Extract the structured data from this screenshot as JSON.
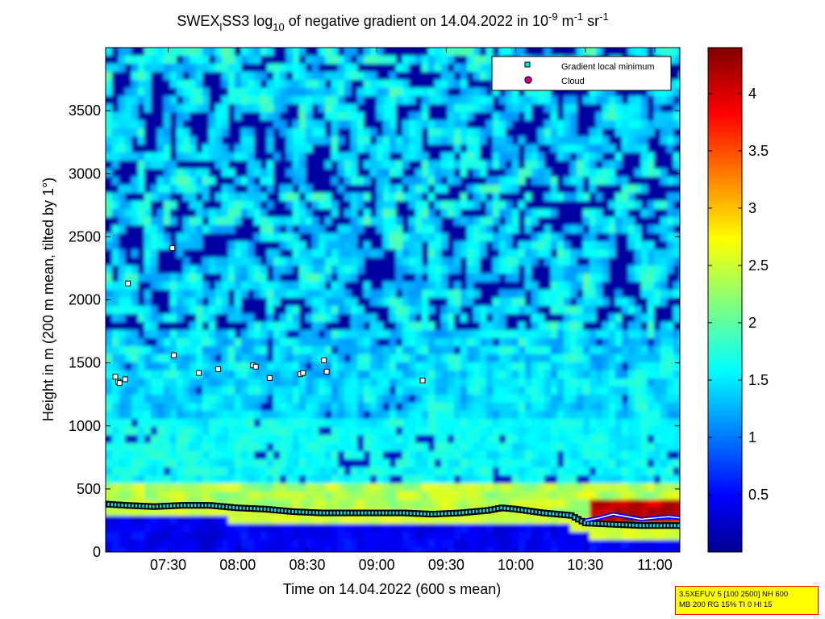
{
  "chart_data": {
    "type": "heatmap",
    "title": {
      "prefix": "SWEX",
      "sub_l": "l",
      "middle": "SS3 log",
      "sub_10": "10",
      "text1": " of negative gradient on 14.04.2022 in 10",
      "sup1": "-9",
      "text2": " m",
      "sup2": "-1",
      "text3": " sr",
      "sup3": "-1"
    },
    "xlabel": "Time on 14.04.2022 (600 s mean)",
    "ylabel": "Height in m (200 m mean, tilted by 1°)",
    "x_range_hours": [
      7.05,
      11.18
    ],
    "x_ticks": [
      {
        "label": "07:30",
        "hour": 7.5
      },
      {
        "label": "08:00",
        "hour": 8.0
      },
      {
        "label": "08:30",
        "hour": 8.5
      },
      {
        "label": "09:00",
        "hour": 9.0
      },
      {
        "label": "09:30",
        "hour": 9.5
      },
      {
        "label": "10:00",
        "hour": 10.0
      },
      {
        "label": "10:30",
        "hour": 10.5
      },
      {
        "label": "11:00",
        "hour": 11.0
      }
    ],
    "ylim": [
      0,
      4000
    ],
    "y_ticks": [
      "0",
      "500",
      "1000",
      "1500",
      "2000",
      "2500",
      "3000",
      "3500"
    ],
    "y_tick_values": [
      0,
      500,
      1000,
      1500,
      2000,
      2500,
      3000,
      3500
    ],
    "colorbar": {
      "range": [
        0,
        4.4
      ],
      "ticks": [
        "0.5",
        "1",
        "1.5",
        "2",
        "2.5",
        "3",
        "3.5",
        "4"
      ],
      "tick_values": [
        0.5,
        1,
        1.5,
        2,
        2.5,
        3,
        3.5,
        4
      ],
      "colormap": "jet"
    },
    "legend": {
      "placement": "top-right",
      "entries": [
        {
          "label": "Gradient local minimum",
          "marker": "square",
          "color": "#00e5e5"
        },
        {
          "label": "Cloud",
          "marker": "circle",
          "color": "#ff0000"
        }
      ]
    },
    "local_minima_scatter": [
      {
        "hour": 7.12,
        "height": 1390
      },
      {
        "hour": 7.14,
        "height": 1350
      },
      {
        "hour": 7.15,
        "height": 1340
      },
      {
        "hour": 7.19,
        "height": 1370
      },
      {
        "hour": 7.21,
        "height": 2130
      },
      {
        "hour": 7.53,
        "height": 2410
      },
      {
        "hour": 7.54,
        "height": 1560
      },
      {
        "hour": 7.72,
        "height": 1420
      },
      {
        "hour": 7.86,
        "height": 1450
      },
      {
        "hour": 8.11,
        "height": 1480
      },
      {
        "hour": 8.13,
        "height": 1470
      },
      {
        "hour": 8.23,
        "height": 1380
      },
      {
        "hour": 8.45,
        "height": 1410
      },
      {
        "hour": 8.47,
        "height": 1420
      },
      {
        "hour": 8.62,
        "height": 1520
      },
      {
        "hour": 8.64,
        "height": 1430
      },
      {
        "hour": 9.33,
        "height": 1360
      }
    ],
    "boundary_layer_minimum": [
      {
        "hour": 7.05,
        "height": 380
      },
      {
        "hour": 7.2,
        "height": 370
      },
      {
        "hour": 7.4,
        "height": 360
      },
      {
        "hour": 7.6,
        "height": 370
      },
      {
        "hour": 7.8,
        "height": 370
      },
      {
        "hour": 8.0,
        "height": 350
      },
      {
        "hour": 8.2,
        "height": 340
      },
      {
        "hour": 8.4,
        "height": 320
      },
      {
        "hour": 8.6,
        "height": 310
      },
      {
        "hour": 8.8,
        "height": 310
      },
      {
        "hour": 9.0,
        "height": 310
      },
      {
        "hour": 9.2,
        "height": 310
      },
      {
        "hour": 9.4,
        "height": 300
      },
      {
        "hour": 9.6,
        "height": 310
      },
      {
        "hour": 9.8,
        "height": 330
      },
      {
        "hour": 9.9,
        "height": 350
      },
      {
        "hour": 10.0,
        "height": 340
      },
      {
        "hour": 10.2,
        "height": 310
      },
      {
        "hour": 10.4,
        "height": 290
      },
      {
        "hour": 10.5,
        "height": 230
      },
      {
        "hour": 10.7,
        "height": 220
      },
      {
        "hour": 10.9,
        "height": 210
      },
      {
        "hour": 11.18,
        "height": 210
      }
    ],
    "cloud_base": [
      {
        "hour": 10.5,
        "height": 250
      },
      {
        "hour": 10.6,
        "height": 270
      },
      {
        "hour": 10.7,
        "height": 300
      },
      {
        "hour": 10.8,
        "height": 280
      },
      {
        "hour": 10.9,
        "height": 260
      },
      {
        "hour": 11.0,
        "height": 270
      },
      {
        "hour": 11.1,
        "height": 280
      },
      {
        "hour": 11.18,
        "height": 270
      }
    ]
  },
  "info_box": {
    "line1": "3.5XEFUV 5 [100 2500] NH 600",
    "line2": "MB 200 RG 15% TI 0 HI 15"
  }
}
